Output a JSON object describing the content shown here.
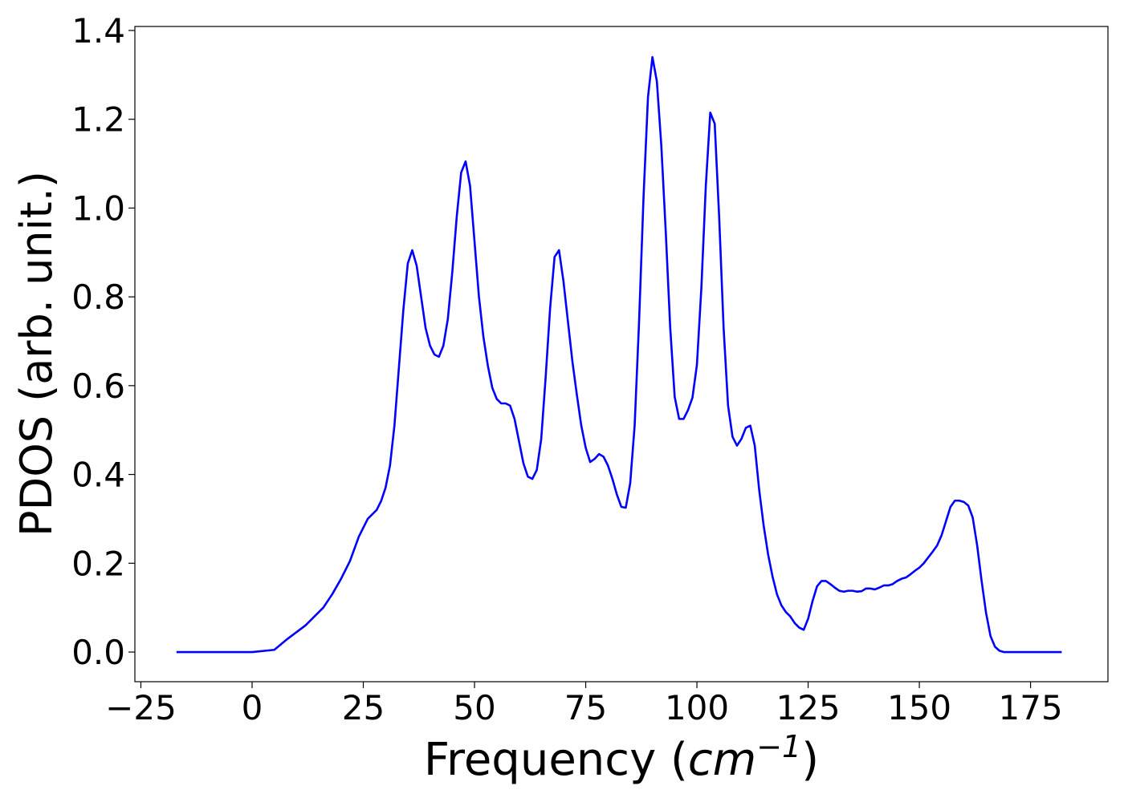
{
  "chart_data": {
    "type": "line",
    "xlabel": [
      "Frequency (",
      "cm",
      "−1",
      ")"
    ],
    "ylabel": "PDOS (arb. unit.)",
    "x": [
      -17,
      0,
      5,
      8,
      12,
      16,
      18,
      20,
      22,
      24,
      25,
      26,
      28,
      29,
      30,
      31,
      32,
      33,
      34,
      35,
      36,
      37,
      38,
      39,
      40,
      41,
      42,
      43,
      44,
      45,
      46,
      47,
      48,
      49,
      50,
      51,
      52,
      53,
      54,
      55,
      56,
      57,
      58,
      59,
      60,
      61,
      62,
      63,
      64,
      65,
      66,
      67,
      68,
      69,
      70,
      71,
      72,
      73,
      74,
      75,
      76,
      77,
      78,
      79,
      80,
      81,
      82,
      83,
      84,
      85,
      86,
      87,
      88,
      89,
      90,
      91,
      92,
      93,
      94,
      95,
      96,
      97,
      98,
      99,
      100,
      101,
      102,
      103,
      104,
      105,
      106,
      107,
      108,
      109,
      110,
      111,
      112,
      113,
      114,
      115,
      116,
      117,
      118,
      119,
      120,
      121,
      122,
      123,
      124,
      125,
      126,
      127,
      128,
      129,
      130,
      131,
      132,
      133,
      134,
      135,
      136,
      137,
      138,
      139,
      140,
      141,
      142,
      143,
      144,
      145,
      146,
      147,
      148,
      149,
      150,
      151,
      152,
      153,
      154,
      155,
      156,
      157,
      158,
      159,
      160,
      161,
      162,
      163,
      164,
      165,
      166,
      167,
      168,
      169,
      182
    ],
    "series": [
      {
        "color": "#0000ff",
        "values": [
          0,
          0,
          0.005,
          0.03,
          0.06,
          0.1,
          0.13,
          0.165,
          0.205,
          0.26,
          0.28,
          0.3,
          0.32,
          0.34,
          0.37,
          0.42,
          0.51,
          0.64,
          0.77,
          0.875,
          0.905,
          0.87,
          0.8,
          0.73,
          0.69,
          0.67,
          0.665,
          0.69,
          0.75,
          0.855,
          0.98,
          1.08,
          1.105,
          1.05,
          0.925,
          0.8,
          0.71,
          0.645,
          0.595,
          0.57,
          0.56,
          0.56,
          0.555,
          0.525,
          0.475,
          0.425,
          0.395,
          0.39,
          0.41,
          0.48,
          0.62,
          0.775,
          0.89,
          0.905,
          0.835,
          0.745,
          0.655,
          0.58,
          0.51,
          0.46,
          0.428,
          0.435,
          0.446,
          0.44,
          0.42,
          0.39,
          0.355,
          0.327,
          0.325,
          0.38,
          0.51,
          0.745,
          1.025,
          1.25,
          1.34,
          1.285,
          1.14,
          0.945,
          0.73,
          0.575,
          0.525,
          0.525,
          0.545,
          0.573,
          0.647,
          0.82,
          1.05,
          1.215,
          1.19,
          0.98,
          0.73,
          0.555,
          0.485,
          0.465,
          0.48,
          0.505,
          0.51,
          0.465,
          0.365,
          0.285,
          0.22,
          0.17,
          0.13,
          0.105,
          0.09,
          0.08,
          0.065,
          0.055,
          0.05,
          0.075,
          0.115,
          0.148,
          0.16,
          0.16,
          0.153,
          0.145,
          0.138,
          0.136,
          0.138,
          0.138,
          0.136,
          0.137,
          0.143,
          0.143,
          0.141,
          0.145,
          0.15,
          0.15,
          0.153,
          0.16,
          0.165,
          0.168,
          0.175,
          0.183,
          0.19,
          0.2,
          0.213,
          0.226,
          0.24,
          0.263,
          0.295,
          0.327,
          0.341,
          0.341,
          0.338,
          0.33,
          0.303,
          0.24,
          0.16,
          0.088,
          0.036,
          0.012,
          0.003,
          0,
          0
        ]
      }
    ],
    "xlim": [
      -26.35,
      192.4
    ],
    "ylim": [
      -0.0668,
      1.409
    ],
    "xticks": [
      {
        "value": -25,
        "label": "−25"
      },
      0,
      25,
      50,
      75,
      100,
      125,
      150,
      175
    ],
    "yticks": [
      {
        "value": 0,
        "label": "0.0"
      },
      0.2,
      0.4,
      0.6,
      0.8,
      {
        "value": 1,
        "label": "1.0"
      },
      1.2,
      1.4
    ]
  }
}
